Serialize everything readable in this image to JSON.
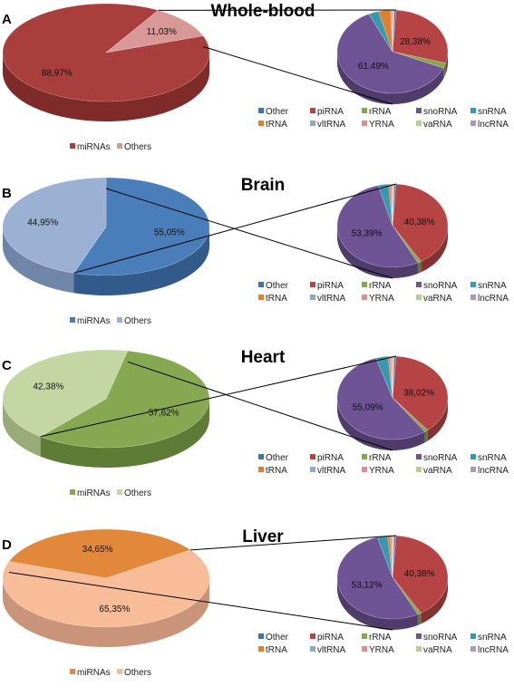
{
  "colors": {
    "Other": "#3b76ad",
    "piRNA": "#b64444",
    "rRNA": "#84a84b",
    "snoRNA": "#6e5494",
    "snRNA": "#3898b0",
    "tRNA": "#e07f2e",
    "vltRNA": "#8fa8c8",
    "YRNA": "#d8918c",
    "vaRNA": "#b7d08f",
    "lncRNA": "#a898be"
  },
  "chart_data": [
    {
      "type": "pie",
      "letter": "A",
      "title": "Whole-blood",
      "main": {
        "legend": [
          "miRNAs",
          "Others"
        ],
        "slices": [
          {
            "name": "miRNAs",
            "value": 88.97,
            "label": "88,97%",
            "color": "#a83f3d",
            "side": "#7f2b2a"
          },
          {
            "name": "Others",
            "value": 11.03,
            "label": "11,03%",
            "color": "#d89896",
            "side": "#ad6d6b"
          }
        ]
      },
      "detail": {
        "slices": [
          {
            "name": "Other",
            "value": 0.5
          },
          {
            "name": "piRNA",
            "value": 28.38,
            "label": "28,38%"
          },
          {
            "name": "rRNA",
            "value": 2.0
          },
          {
            "name": "snoRNA",
            "value": 61.49,
            "label": "61,49%"
          },
          {
            "name": "snRNA",
            "value": 3.0
          },
          {
            "name": "tRNA",
            "value": 3.5
          },
          {
            "name": "vltRNA",
            "value": 0.3
          },
          {
            "name": "YRNA",
            "value": 0.4
          },
          {
            "name": "vaRNA",
            "value": 0.2
          },
          {
            "name": "lncRNA",
            "value": 0.23
          }
        ]
      }
    },
    {
      "type": "pie",
      "letter": "B",
      "title": "Brain",
      "main": {
        "legend": [
          "miRNAs",
          "Others"
        ],
        "slices": [
          {
            "name": "miRNAs",
            "value": 55.05,
            "label": "55,05%",
            "color": "#4a7ebb",
            "side": "#325a8a"
          },
          {
            "name": "Others",
            "value": 44.95,
            "label": "44,95%",
            "color": "#9bb1d4",
            "side": "#7086a8"
          }
        ]
      },
      "detail": {
        "slices": [
          {
            "name": "Other",
            "value": 0.5
          },
          {
            "name": "piRNA",
            "value": 40.38,
            "label": "40,38%"
          },
          {
            "name": "rRNA",
            "value": 1.0
          },
          {
            "name": "snoRNA",
            "value": 53.39,
            "label": "53,39%"
          },
          {
            "name": "snRNA",
            "value": 3.0
          },
          {
            "name": "tRNA",
            "value": 0.6
          },
          {
            "name": "vltRNA",
            "value": 0.4
          },
          {
            "name": "YRNA",
            "value": 0.3
          },
          {
            "name": "vaRNA",
            "value": 0.2
          },
          {
            "name": "lncRNA",
            "value": 0.23
          }
        ]
      }
    },
    {
      "type": "pie",
      "letter": "C",
      "title": "Heart",
      "main": {
        "legend": [
          "miRNAs",
          "Others"
        ],
        "slices": [
          {
            "name": "miRNAs",
            "value": 57.62,
            "label": "57,62%",
            "color": "#86a851",
            "side": "#5f7c36"
          },
          {
            "name": "Others",
            "value": 42.38,
            "label": "42,38%",
            "color": "#c4d6a2",
            "side": "#98ab78"
          }
        ]
      },
      "detail": {
        "slices": [
          {
            "name": "Other",
            "value": 0.5
          },
          {
            "name": "piRNA",
            "value": 38.02,
            "label": "38,02%"
          },
          {
            "name": "rRNA",
            "value": 1.0
          },
          {
            "name": "snoRNA",
            "value": 55.09,
            "label": "55,09%"
          },
          {
            "name": "snRNA",
            "value": 3.5
          },
          {
            "name": "tRNA",
            "value": 0.6
          },
          {
            "name": "vltRNA",
            "value": 0.4
          },
          {
            "name": "YRNA",
            "value": 0.3
          },
          {
            "name": "vaRNA",
            "value": 0.3
          },
          {
            "name": "lncRNA",
            "value": 0.29
          }
        ]
      }
    },
    {
      "type": "pie",
      "letter": "D",
      "title": "Liver",
      "main": {
        "legend": [
          "miRNAs",
          "Others"
        ],
        "slices": [
          {
            "name": "miRNAs",
            "value": 34.65,
            "label": "34,65%",
            "color": "#e2883b",
            "side": "#b0642a"
          },
          {
            "name": "Others",
            "value": 65.35,
            "label": "65,35%",
            "color": "#f8bc98",
            "side": "#c99479"
          }
        ]
      },
      "detail": {
        "slices": [
          {
            "name": "Other",
            "value": 0.5
          },
          {
            "name": "piRNA",
            "value": 40.38,
            "label": "40,38%"
          },
          {
            "name": "rRNA",
            "value": 1.0
          },
          {
            "name": "snoRNA",
            "value": 53.12,
            "label": "53,12%"
          },
          {
            "name": "snRNA",
            "value": 3.0
          },
          {
            "name": "tRNA",
            "value": 0.8
          },
          {
            "name": "vltRNA",
            "value": 0.4
          },
          {
            "name": "YRNA",
            "value": 0.3
          },
          {
            "name": "vaRNA",
            "value": 0.2
          },
          {
            "name": "lncRNA",
            "value": 0.3
          }
        ]
      }
    }
  ],
  "legend": {
    "detail_rows": [
      [
        "Other",
        "piRNA",
        "rRNA",
        "snoRNA",
        "snRNA"
      ],
      [
        "tRNA",
        "vltRNA",
        "YRNA",
        "vaRNA",
        "lncRNA"
      ]
    ]
  }
}
